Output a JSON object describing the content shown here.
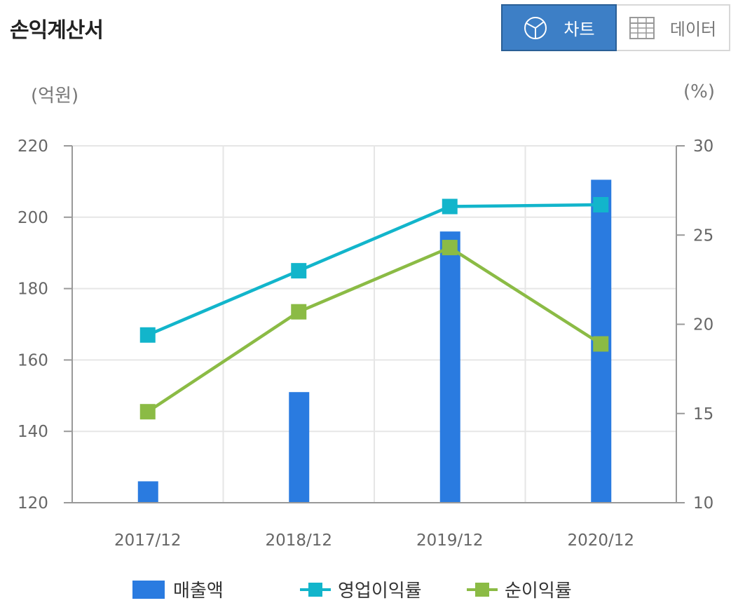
{
  "header": {
    "title": "손익계산서"
  },
  "toggle": {
    "chart_label": "차트",
    "data_label": "데이터"
  },
  "units": {
    "left": "(억원)",
    "right": "(%)"
  },
  "colors": {
    "bar": "#2a7be0",
    "operating": "#12b5cb",
    "net": "#8bbb45"
  },
  "chart_data": {
    "type": "bar",
    "categories": [
      "2017/12",
      "2018/12",
      "2019/12",
      "2020/12"
    ],
    "series": [
      {
        "name": "매출액",
        "type": "bar",
        "axis": "left",
        "values": [
          126,
          151,
          196,
          210.5
        ]
      },
      {
        "name": "영업이익률",
        "type": "line",
        "axis": "right",
        "values": [
          19.4,
          23.0,
          26.6,
          26.7
        ]
      },
      {
        "name": "순이익률",
        "type": "line",
        "axis": "right",
        "values": [
          15.1,
          20.7,
          24.3,
          18.9
        ]
      }
    ],
    "ylim_left": [
      120,
      220
    ],
    "yticks_left": [
      "120",
      "140",
      "160",
      "180",
      "200",
      "220"
    ],
    "ylim_right": [
      10,
      30
    ],
    "yticks_right": [
      "10",
      "15",
      "20",
      "25",
      "30"
    ],
    "grid": true,
    "legend": "bottom"
  },
  "legend": {
    "bar": "매출액",
    "operating": "영업이익률",
    "net": "순이익률"
  }
}
